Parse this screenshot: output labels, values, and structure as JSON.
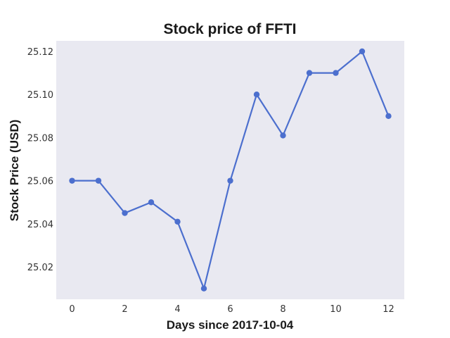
{
  "chart_data": {
    "type": "line",
    "title": "Stock price of FFTI",
    "xlabel": "Days since 2017-10-04",
    "ylabel": "Stock Price (USD)",
    "x": [
      0,
      1,
      2,
      3,
      4,
      5,
      6,
      7,
      8,
      9,
      10,
      11,
      12
    ],
    "series": [
      {
        "values": [
          25.06,
          25.06,
          25.045,
          25.05,
          25.041,
          25.01,
          25.06,
          25.1,
          25.081,
          25.11,
          25.11,
          25.12,
          25.09
        ],
        "color": "#4c6fce"
      }
    ],
    "xticks": [
      0,
      2,
      4,
      6,
      8,
      10,
      12
    ],
    "xtick_labels": [
      "0",
      "2",
      "4",
      "6",
      "8",
      "10",
      "12"
    ],
    "yticks": [
      25.02,
      25.04,
      25.06,
      25.08,
      25.1,
      25.12
    ],
    "ytick_labels": [
      "25.02",
      "25.04",
      "25.06",
      "25.08",
      "25.10",
      "25.12"
    ],
    "xlim": [
      -0.6,
      12.6
    ],
    "ylim": [
      25.005,
      25.1249
    ],
    "grid": false,
    "legend": "none",
    "plot_background": "#e9e9f1"
  }
}
